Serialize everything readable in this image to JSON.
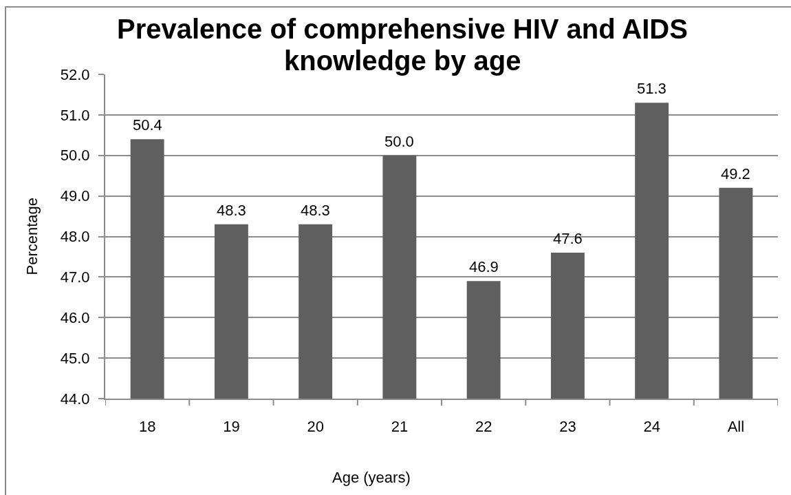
{
  "chart_data": {
    "type": "bar",
    "title": "Prevalence of comprehensive HIV and AIDS knowledge by age",
    "xlabel": "Age (years)",
    "ylabel": "Percentage",
    "categories": [
      "18",
      "19",
      "20",
      "21",
      "22",
      "23",
      "24",
      "All"
    ],
    "values": [
      50.4,
      48.3,
      48.3,
      50.0,
      46.9,
      47.6,
      51.3,
      49.2
    ],
    "value_labels": [
      "50.4",
      "48.3",
      "48.3",
      "50.0",
      "46.9",
      "47.6",
      "51.3",
      "49.2"
    ],
    "color": "#5f5f5f",
    "ylim": [
      44,
      52
    ],
    "yticks": [
      {
        "value": 44,
        "label": "44.0"
      },
      {
        "value": 45,
        "label": "45.0"
      },
      {
        "value": 46,
        "label": "46.0"
      },
      {
        "value": 47,
        "label": "47.0"
      },
      {
        "value": 48,
        "label": "48.0"
      },
      {
        "value": 49,
        "label": "49.0"
      },
      {
        "value": 50,
        "label": "50.0"
      },
      {
        "value": 51,
        "label": "51.0"
      },
      {
        "value": 52,
        "label": "52.0"
      }
    ],
    "grid": "y"
  }
}
